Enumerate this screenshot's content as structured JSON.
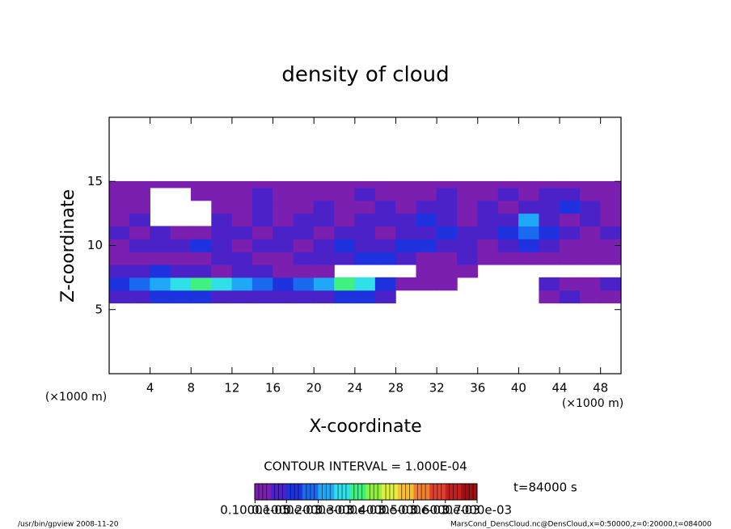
{
  "chart_data": {
    "type": "heatmap",
    "title": "density of cloud",
    "xlabel": "X-coordinate",
    "ylabel": "Z-coordinate",
    "x_unit_label": "(×1000 m)",
    "x_unit_label_2": "(×1000 m)",
    "xlim": [
      0,
      50
    ],
    "ylim": [
      0,
      20
    ],
    "xticks": [
      4,
      8,
      12,
      16,
      20,
      24,
      28,
      32,
      36,
      40,
      44,
      48
    ],
    "yticks": [
      5,
      10,
      15
    ],
    "x_edges": [
      0,
      2,
      4,
      6,
      8,
      10,
      12,
      14,
      16,
      18,
      20,
      22,
      24,
      26,
      28,
      30,
      32,
      34,
      36,
      38,
      40,
      42,
      44,
      46,
      48,
      50
    ],
    "y_edges": [
      5.5,
      6.5,
      7.5,
      8.5,
      9.5,
      10.5,
      11.5,
      12.5,
      13.5,
      14.5,
      15
    ],
    "values": [
      [
        6e-05,
        6e-05,
        0.0001,
        0.0001,
        0.0001,
        6e-05,
        6e-05,
        6e-05,
        6e-05,
        6e-05,
        6e-05,
        0.0001,
        0.0001,
        6e-05,
        null,
        null,
        null,
        null,
        null,
        null,
        null,
        3e-05,
        6e-05,
        3e-05,
        3e-05
      ],
      [
        0.0001,
        0.00015,
        0.0002,
        0.00025,
        0.0003,
        0.00025,
        0.0002,
        0.00015,
        0.0001,
        0.00015,
        0.0002,
        0.0003,
        0.00025,
        0.0001,
        3e-05,
        3e-05,
        3e-05,
        null,
        null,
        null,
        null,
        6e-05,
        3e-05,
        3e-05,
        6e-05
      ],
      [
        6e-05,
        6e-05,
        0.0001,
        6e-05,
        6e-05,
        3e-05,
        6e-05,
        6e-05,
        3e-05,
        3e-05,
        3e-05,
        null,
        null,
        null,
        null,
        3e-05,
        3e-05,
        3e-05,
        null,
        null,
        null,
        null,
        null,
        null,
        null
      ],
      [
        3e-05,
        3e-05,
        3e-05,
        3e-05,
        3e-05,
        6e-05,
        6e-05,
        3e-05,
        3e-05,
        6e-05,
        6e-05,
        6e-05,
        0.0001,
        0.0001,
        6e-05,
        3e-05,
        3e-05,
        6e-05,
        3e-05,
        3e-05,
        3e-05,
        3e-05,
        3e-05,
        3e-05,
        3e-05
      ],
      [
        3e-05,
        6e-05,
        6e-05,
        6e-05,
        0.0001,
        6e-05,
        3e-05,
        6e-05,
        6e-05,
        3e-05,
        6e-05,
        0.0001,
        6e-05,
        6e-05,
        0.0001,
        0.0001,
        6e-05,
        6e-05,
        3e-05,
        6e-05,
        0.0001,
        6e-05,
        3e-05,
        3e-05,
        3e-05
      ],
      [
        6e-05,
        3e-05,
        6e-05,
        3e-05,
        3e-05,
        6e-05,
        6e-05,
        3e-05,
        6e-05,
        6e-05,
        3e-05,
        6e-05,
        6e-05,
        3e-05,
        6e-05,
        6e-05,
        0.0001,
        6e-05,
        6e-05,
        0.0001,
        0.00015,
        0.0001,
        6e-05,
        3e-05,
        6e-05
      ],
      [
        3e-05,
        6e-05,
        null,
        null,
        null,
        6e-05,
        3e-05,
        6e-05,
        3e-05,
        6e-05,
        6e-05,
        3e-05,
        6e-05,
        6e-05,
        6e-05,
        0.0001,
        6e-05,
        3e-05,
        6e-05,
        6e-05,
        0.0002,
        6e-05,
        3e-05,
        6e-05,
        3e-05
      ],
      [
        3e-05,
        3e-05,
        null,
        null,
        null,
        3e-05,
        3e-05,
        6e-05,
        3e-05,
        3e-05,
        6e-05,
        3e-05,
        3e-05,
        6e-05,
        3e-05,
        6e-05,
        6e-05,
        3e-05,
        6e-05,
        3e-05,
        6e-05,
        6e-05,
        0.0001,
        6e-05,
        3e-05
      ],
      [
        3e-05,
        3e-05,
        null,
        null,
        3e-05,
        3e-05,
        3e-05,
        6e-05,
        3e-05,
        3e-05,
        3e-05,
        3e-05,
        6e-05,
        3e-05,
        3e-05,
        3e-05,
        6e-05,
        3e-05,
        3e-05,
        6e-05,
        3e-05,
        6e-05,
        6e-05,
        3e-05,
        3e-05
      ],
      [
        3e-05,
        3e-05,
        3e-05,
        3e-05,
        3e-05,
        3e-05,
        3e-05,
        3e-05,
        3e-05,
        3e-05,
        3e-05,
        3e-05,
        3e-05,
        3e-05,
        3e-05,
        3e-05,
        3e-05,
        3e-05,
        3e-05,
        3e-05,
        3e-05,
        3e-05,
        3e-05,
        3e-05,
        3e-05
      ]
    ],
    "colorbar": {
      "clim": [
        0,
        0.0007
      ],
      "colors": [
        "#7a1fb0",
        "#4a22c8",
        "#1e32e0",
        "#1a6af0",
        "#20a8f8",
        "#30e0e8",
        "#40f080",
        "#90f040",
        "#e0f040",
        "#f8c030",
        "#f08030",
        "#e04030",
        "#c02020",
        "#a01010"
      ],
      "ticks": [
        {
          "value": 1e-06,
          "label": "0.1000e-05"
        },
        {
          "value": 0.0001,
          "label": "0.1000e-03"
        },
        {
          "value": 0.0002,
          "label": "0.2000e-03"
        },
        {
          "value": 0.0003,
          "label": "0.3000e-03"
        },
        {
          "value": 0.0004,
          "label": "0.4000e-03"
        },
        {
          "value": 0.0005,
          "label": "0.5000e-03"
        },
        {
          "value": 0.0006,
          "label": "0.6000e-03"
        },
        {
          "value": 0.0007,
          "label": "0.7000e-03"
        }
      ]
    },
    "contour_interval": "CONTOUR INTERVAL = 1.000E-04",
    "time_label": "t=84000 s",
    "footer_left": "/usr/bin/gpview   2008-11-20",
    "footer_right": "MarsCond_DensCloud.nc@DensCloud,x=0:50000,z=0:20000,t=084000"
  }
}
